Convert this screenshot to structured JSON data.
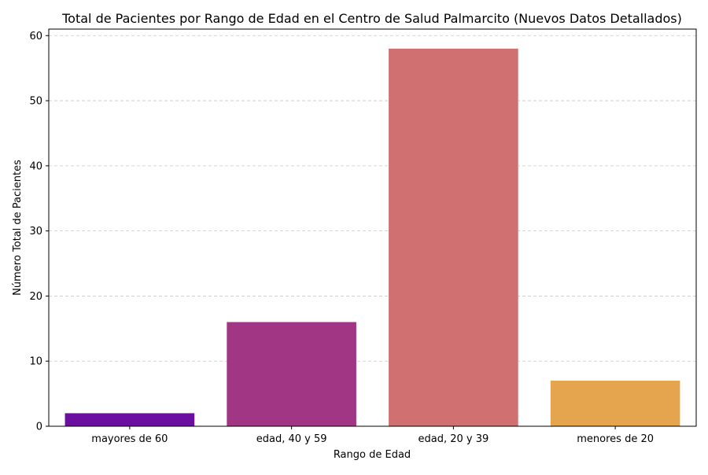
{
  "chart_data": {
    "type": "bar",
    "title": "Total de Pacientes por Rango de Edad en el Centro de Salud Palmarcito (Nuevos Datos Detallados)",
    "xlabel": "Rango de Edad",
    "ylabel": "Número Total de Pacientes",
    "categories": [
      "mayores de 60",
      "edad, 40 y 59",
      "edad, 20 y 39",
      "menores de 20"
    ],
    "values": [
      2,
      16,
      58,
      7
    ],
    "colors": [
      "#6a0fa0",
      "#a13784",
      "#d07070",
      "#e5a44e"
    ],
    "ylim": [
      0,
      61
    ],
    "yticks": [
      0,
      10,
      20,
      30,
      40,
      50,
      60
    ],
    "grid": true,
    "grid_axis": "y",
    "legend": "none"
  }
}
